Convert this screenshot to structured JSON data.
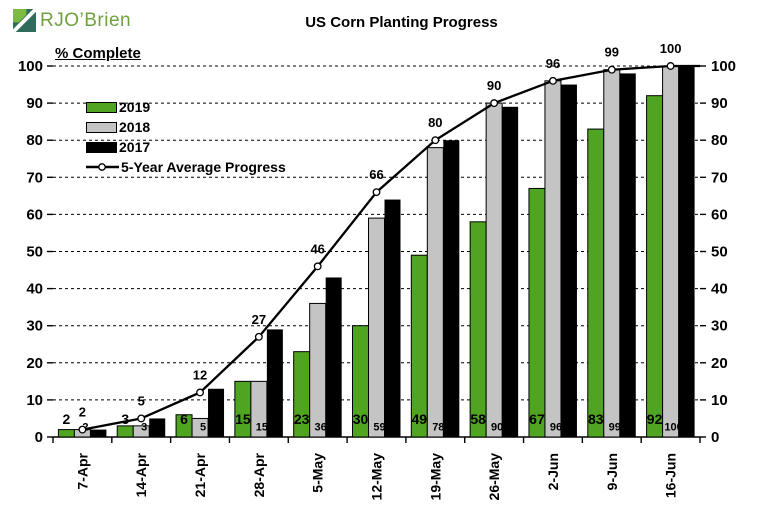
{
  "logo": {
    "text": "RJO’Brien",
    "colors": {
      "light_green": "#7CBB41",
      "teal": "#2F6C5E",
      "text": "#6EA13F"
    }
  },
  "title": "US Corn Planting Progress",
  "y_axis_note": "% Complete",
  "legend": [
    {
      "label": "2019",
      "swatch": "#4FA521",
      "type": "bar"
    },
    {
      "label": "2018",
      "swatch": "#C4C4C4",
      "type": "bar"
    },
    {
      "label": "2017",
      "swatch": "#000000",
      "type": "bar"
    },
    {
      "label": "5-Year Average Progress",
      "swatch": "#000000",
      "type": "line"
    }
  ],
  "chart_data": {
    "type": "bar",
    "subtype": "grouped-bars-with-line-overlay",
    "title": "US Corn Planting Progress",
    "xlabel": "",
    "ylabel": "% Complete",
    "ylim": [
      0,
      100
    ],
    "yticks": [
      0,
      10,
      20,
      30,
      40,
      50,
      60,
      70,
      80,
      90,
      100
    ],
    "grid": "horizontal-dashed",
    "dual_value_axis": true,
    "legend_position": "upper-left-inside",
    "categories": [
      "7-Apr",
      "14-Apr",
      "21-Apr",
      "28-Apr",
      "5-May",
      "12-May",
      "19-May",
      "26-May",
      "2-Jun",
      "9-Jun",
      "16-Jun"
    ],
    "series": [
      {
        "name": "2019",
        "type": "bar",
        "color": "#4FA521",
        "values": [
          2,
          3,
          6,
          15,
          23,
          30,
          49,
          58,
          67,
          83,
          92
        ],
        "labels_shown": true
      },
      {
        "name": "2018",
        "type": "bar",
        "color": "#C4C4C4",
        "values": [
          2,
          3,
          5,
          15,
          36,
          59,
          78,
          90,
          96,
          99,
          100
        ],
        "labels_shown": true
      },
      {
        "name": "2017",
        "type": "bar",
        "color": "#000000",
        "values": [
          2,
          5,
          13,
          29,
          43,
          64,
          80,
          89,
          95,
          98,
          100
        ],
        "labels_shown": false
      },
      {
        "name": "5-Year Average Progress",
        "type": "line",
        "color": "#000000",
        "marker": "open-circle",
        "values": [
          2,
          5,
          12,
          27,
          46,
          66,
          80,
          90,
          96,
          99,
          100
        ],
        "labels_shown": true
      }
    ]
  }
}
